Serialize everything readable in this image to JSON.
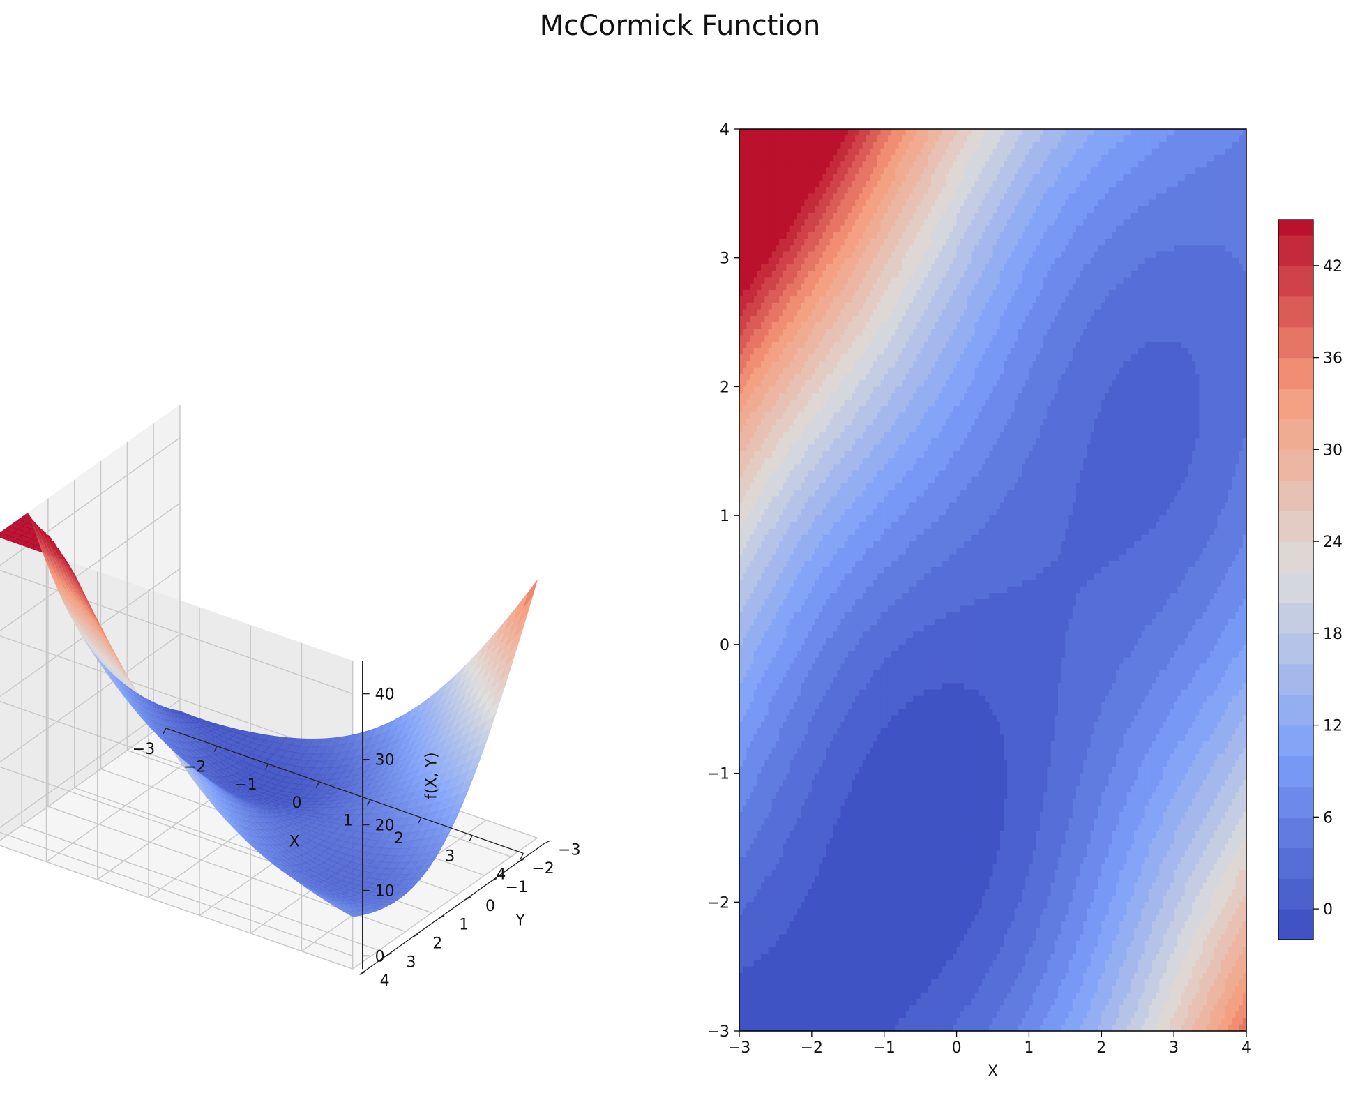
{
  "title": "McCormick Function",
  "chart_data": [
    {
      "type": "surface3d",
      "function": "f(x, y) = sin(x + y) + (x - y)^2 - 1.5*x + 2.5*y + 1",
      "colormap": "coolwarm",
      "x": {
        "label": "X",
        "range": [
          -3,
          4
        ],
        "ticks": [
          "−3",
          "−2",
          "−1",
          "0",
          "1",
          "2",
          "3",
          "4"
        ]
      },
      "y": {
        "label": "Y",
        "range": [
          -3,
          4
        ],
        "ticks": [
          "−3",
          "−2",
          "−1",
          "0",
          "1",
          "2",
          "3",
          "4"
        ]
      },
      "z": {
        "label": "f(X, Y)",
        "range": [
          -2,
          45
        ],
        "ticks": [
          "0",
          "10",
          "20",
          "30",
          "40"
        ]
      },
      "z_clip": [
        -2,
        45
      ],
      "grid": true
    },
    {
      "type": "contourf",
      "function": "f(x, y) = sin(x + y) + (x - y)^2 - 1.5*x + 2.5*y + 1",
      "colormap": "coolwarm",
      "x": {
        "label": "X",
        "range": [
          -3,
          4
        ],
        "ticks": [
          "−3",
          "−2",
          "−1",
          "0",
          "1",
          "2",
          "3",
          "4"
        ]
      },
      "y": {
        "label": "",
        "range": [
          -3,
          4
        ],
        "ticks": [
          "−3",
          "−2",
          "−1",
          "0",
          "1",
          "2",
          "3",
          "4"
        ]
      },
      "levels": {
        "min": -2,
        "max": 45,
        "step": 2
      },
      "colorbar": {
        "range": [
          -2,
          45
        ],
        "ticks": [
          "0",
          "6",
          "12",
          "18",
          "24",
          "30",
          "36",
          "42"
        ]
      }
    }
  ]
}
